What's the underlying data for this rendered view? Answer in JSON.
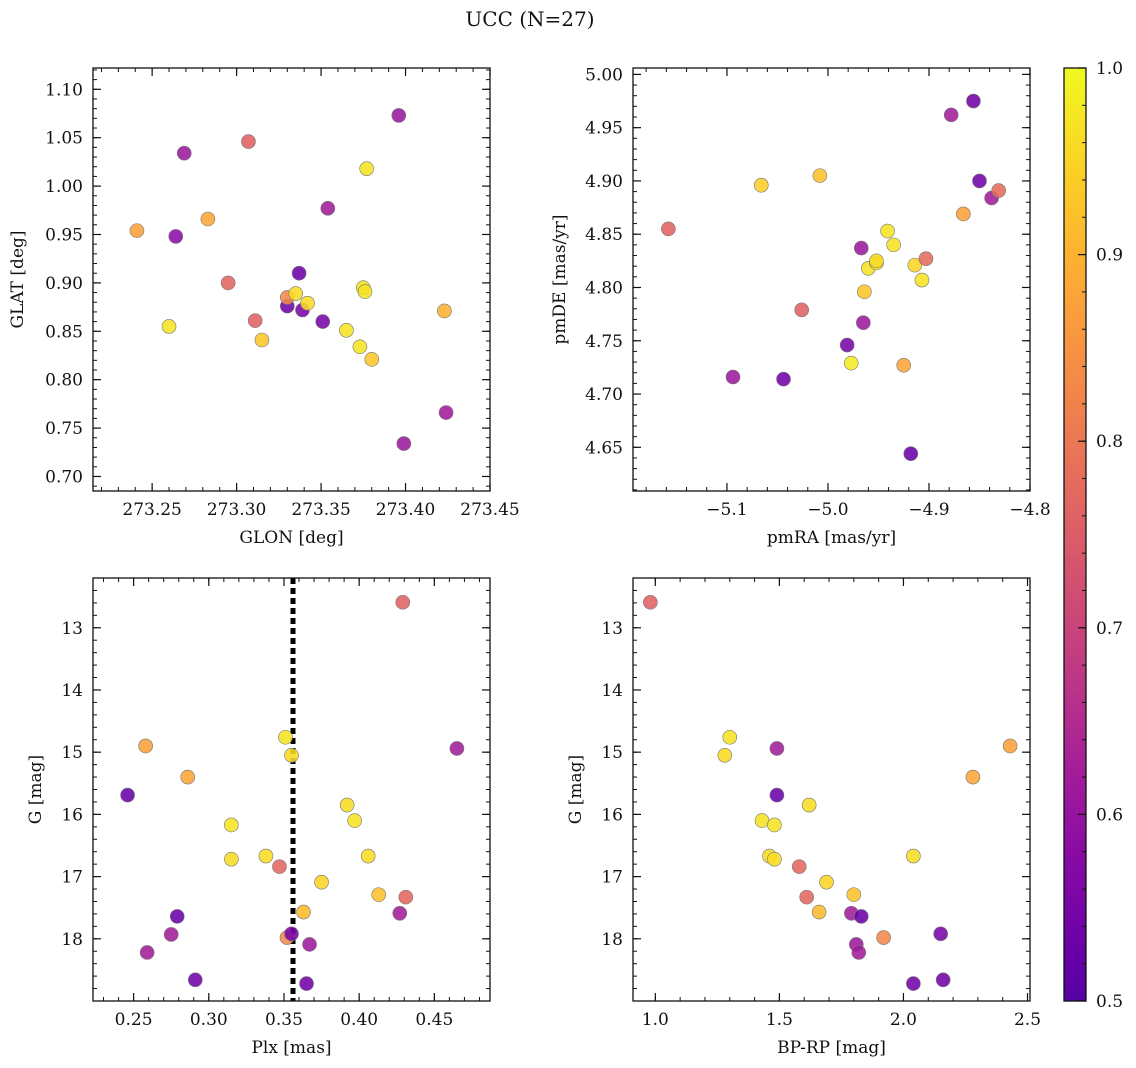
{
  "figure": {
    "title": "UCC (N=27)",
    "colorbar": {
      "colormap": "plasma",
      "range": [
        0.5,
        1.0
      ],
      "ticks": [
        0.5,
        0.6,
        0.7,
        0.8,
        0.9,
        1.0
      ],
      "tick_labels": [
        "0.5",
        "0.6",
        "0.7",
        "0.8",
        "0.9",
        "1.0"
      ]
    }
  },
  "chart_data": [
    {
      "type": "scatter",
      "xlabel": "GLON [deg]",
      "ylabel": "GLAT [deg]",
      "xlim": [
        273.215,
        273.45
      ],
      "ylim": [
        0.685,
        1.122
      ],
      "invert_y": false,
      "xticks": [
        273.25,
        273.3,
        273.35,
        273.4,
        273.45
      ],
      "xtick_labels": [
        "273.25",
        "273.30",
        "273.35",
        "273.40",
        "273.45"
      ],
      "yticks": [
        0.7,
        0.75,
        0.8,
        0.85,
        0.9,
        0.95,
        1.0,
        1.05,
        1.1
      ],
      "ytick_labels": [
        "0.70",
        "0.75",
        "0.80",
        "0.85",
        "0.90",
        "0.95",
        "1.00",
        "1.05",
        "1.10"
      ],
      "minor_x_step": 0.01,
      "minor_y_step": 0.01,
      "points": [
        {
          "x": 273.241,
          "y": 0.954,
          "c": 0.87
        },
        {
          "x": 273.264,
          "y": 0.948,
          "c": 0.58
        },
        {
          "x": 273.269,
          "y": 1.034,
          "c": 0.61
        },
        {
          "x": 273.26,
          "y": 0.855,
          "c": 0.97
        },
        {
          "x": 273.283,
          "y": 0.966,
          "c": 0.88
        },
        {
          "x": 273.295,
          "y": 0.9,
          "c": 0.77
        },
        {
          "x": 273.307,
          "y": 1.046,
          "c": 0.76
        },
        {
          "x": 273.311,
          "y": 0.861,
          "c": 0.76
        },
        {
          "x": 273.315,
          "y": 0.841,
          "c": 0.93
        },
        {
          "x": 273.33,
          "y": 0.876,
          "c": 0.54
        },
        {
          "x": 273.33,
          "y": 0.885,
          "c": 0.83
        },
        {
          "x": 273.335,
          "y": 0.889,
          "c": 0.96
        },
        {
          "x": 273.337,
          "y": 0.91,
          "c": 0.53
        },
        {
          "x": 273.339,
          "y": 0.872,
          "c": 0.55
        },
        {
          "x": 273.342,
          "y": 0.879,
          "c": 0.96
        },
        {
          "x": 273.351,
          "y": 0.86,
          "c": 0.55
        },
        {
          "x": 273.354,
          "y": 0.977,
          "c": 0.62
        },
        {
          "x": 273.365,
          "y": 0.851,
          "c": 0.97
        },
        {
          "x": 273.373,
          "y": 0.834,
          "c": 0.97
        },
        {
          "x": 273.375,
          "y": 0.895,
          "c": 0.97
        },
        {
          "x": 273.376,
          "y": 0.891,
          "c": 0.97
        },
        {
          "x": 273.377,
          "y": 1.018,
          "c": 0.97
        },
        {
          "x": 273.38,
          "y": 0.821,
          "c": 0.93
        },
        {
          "x": 273.396,
          "y": 1.073,
          "c": 0.61
        },
        {
          "x": 273.399,
          "y": 0.734,
          "c": 0.61
        },
        {
          "x": 273.423,
          "y": 0.871,
          "c": 0.9
        },
        {
          "x": 273.424,
          "y": 0.766,
          "c": 0.62
        }
      ]
    },
    {
      "type": "scatter",
      "xlabel": "pmRA [mas/yr]",
      "ylabel": "pmDE [mas/yr]",
      "xlim": [
        -5.193,
        -4.8
      ],
      "ylim": [
        4.609,
        5.006
      ],
      "invert_y": false,
      "xticks": [
        -5.1,
        -5.0,
        -4.9,
        -4.8
      ],
      "xtick_labels": [
        "−5.1",
        "−5.0",
        "−4.9",
        "−4.8"
      ],
      "yticks": [
        4.65,
        4.7,
        4.75,
        4.8,
        4.85,
        4.9,
        4.95,
        5.0
      ],
      "ytick_labels": [
        "4.65",
        "4.70",
        "4.75",
        "4.80",
        "4.85",
        "4.90",
        "4.95",
        "5.00"
      ],
      "minor_x_step": 0.02,
      "minor_y_step": 0.01,
      "points": [
        {
          "x": -5.158,
          "y": 4.855,
          "c": 0.76
        },
        {
          "x": -5.094,
          "y": 4.716,
          "c": 0.61
        },
        {
          "x": -5.066,
          "y": 4.896,
          "c": 0.94
        },
        {
          "x": -5.044,
          "y": 4.714,
          "c": 0.54
        },
        {
          "x": -5.026,
          "y": 4.779,
          "c": 0.76
        },
        {
          "x": -5.008,
          "y": 4.905,
          "c": 0.92
        },
        {
          "x": -4.981,
          "y": 4.746,
          "c": 0.55
        },
        {
          "x": -4.977,
          "y": 4.729,
          "c": 0.98
        },
        {
          "x": -4.967,
          "y": 4.837,
          "c": 0.61
        },
        {
          "x": -4.965,
          "y": 4.767,
          "c": 0.61
        },
        {
          "x": -4.964,
          "y": 4.796,
          "c": 0.93
        },
        {
          "x": -4.96,
          "y": 4.818,
          "c": 0.97
        },
        {
          "x": -4.952,
          "y": 4.823,
          "c": 0.97
        },
        {
          "x": -4.952,
          "y": 4.825,
          "c": 0.96
        },
        {
          "x": -4.941,
          "y": 4.853,
          "c": 0.97
        },
        {
          "x": -4.935,
          "y": 4.84,
          "c": 0.97
        },
        {
          "x": -4.925,
          "y": 4.727,
          "c": 0.88
        },
        {
          "x": -4.918,
          "y": 4.644,
          "c": 0.53
        },
        {
          "x": -4.914,
          "y": 4.821,
          "c": 0.95
        },
        {
          "x": -4.907,
          "y": 4.807,
          "c": 0.97
        },
        {
          "x": -4.903,
          "y": 4.827,
          "c": 0.78
        },
        {
          "x": -4.878,
          "y": 4.962,
          "c": 0.62
        },
        {
          "x": -4.866,
          "y": 4.869,
          "c": 0.87
        },
        {
          "x": -4.856,
          "y": 4.975,
          "c": 0.54
        },
        {
          "x": -4.85,
          "y": 4.9,
          "c": 0.54
        },
        {
          "x": -4.838,
          "y": 4.884,
          "c": 0.62
        },
        {
          "x": -4.831,
          "y": 4.891,
          "c": 0.78
        }
      ]
    },
    {
      "type": "scatter",
      "xlabel": "Plx [mas]",
      "ylabel": "G [mag]",
      "xlim": [
        0.223,
        0.487
      ],
      "ylim": [
        12.2,
        19.0
      ],
      "invert_y": true,
      "xticks": [
        0.25,
        0.3,
        0.35,
        0.4,
        0.45
      ],
      "xtick_labels": [
        "0.25",
        "0.30",
        "0.35",
        "0.40",
        "0.45"
      ],
      "yticks": [
        13,
        14,
        15,
        16,
        17,
        18
      ],
      "ytick_labels": [
        "13",
        "14",
        "15",
        "16",
        "17",
        "18"
      ],
      "minor_x_step": 0.01,
      "minor_y_step": 0.2,
      "vline": 0.356,
      "points": [
        {
          "x": 0.246,
          "y": 15.69,
          "c": 0.53
        },
        {
          "x": 0.258,
          "y": 14.9,
          "c": 0.87
        },
        {
          "x": 0.259,
          "y": 18.22,
          "c": 0.62
        },
        {
          "x": 0.275,
          "y": 17.93,
          "c": 0.62
        },
        {
          "x": 0.279,
          "y": 17.64,
          "c": 0.53
        },
        {
          "x": 0.286,
          "y": 15.4,
          "c": 0.88
        },
        {
          "x": 0.291,
          "y": 18.66,
          "c": 0.54
        },
        {
          "x": 0.315,
          "y": 16.17,
          "c": 0.97
        },
        {
          "x": 0.315,
          "y": 16.72,
          "c": 0.96
        },
        {
          "x": 0.338,
          "y": 16.67,
          "c": 0.96
        },
        {
          "x": 0.347,
          "y": 16.84,
          "c": 0.77
        },
        {
          "x": 0.351,
          "y": 14.76,
          "c": 0.97
        },
        {
          "x": 0.352,
          "y": 17.98,
          "c": 0.83
        },
        {
          "x": 0.355,
          "y": 15.05,
          "c": 0.96
        },
        {
          "x": 0.355,
          "y": 17.92,
          "c": 0.55
        },
        {
          "x": 0.363,
          "y": 17.57,
          "c": 0.91
        },
        {
          "x": 0.365,
          "y": 18.72,
          "c": 0.54
        },
        {
          "x": 0.367,
          "y": 18.09,
          "c": 0.61
        },
        {
          "x": 0.375,
          "y": 17.09,
          "c": 0.95
        },
        {
          "x": 0.392,
          "y": 15.85,
          "c": 0.96
        },
        {
          "x": 0.397,
          "y": 16.1,
          "c": 0.97
        },
        {
          "x": 0.406,
          "y": 16.67,
          "c": 0.96
        },
        {
          "x": 0.413,
          "y": 17.29,
          "c": 0.92
        },
        {
          "x": 0.427,
          "y": 17.59,
          "c": 0.62
        },
        {
          "x": 0.429,
          "y": 12.59,
          "c": 0.76
        },
        {
          "x": 0.431,
          "y": 17.33,
          "c": 0.77
        },
        {
          "x": 0.465,
          "y": 14.94,
          "c": 0.62
        }
      ]
    },
    {
      "type": "scatter",
      "xlabel": "BP-RP [mag]",
      "ylabel": "G [mag]",
      "xlim": [
        0.91,
        2.51
      ],
      "ylim": [
        12.2,
        19.0
      ],
      "invert_y": true,
      "xticks": [
        1.0,
        1.5,
        2.0,
        2.5
      ],
      "xtick_labels": [
        "1.0",
        "1.5",
        "2.0",
        "2.5"
      ],
      "yticks": [
        13,
        14,
        15,
        16,
        17,
        18
      ],
      "ytick_labels": [
        "13",
        "14",
        "15",
        "16",
        "17",
        "18"
      ],
      "minor_x_step": 0.1,
      "minor_y_step": 0.2,
      "points": [
        {
          "x": 0.98,
          "y": 12.59,
          "c": 0.76
        },
        {
          "x": 1.28,
          "y": 15.05,
          "c": 0.96
        },
        {
          "x": 1.3,
          "y": 14.76,
          "c": 0.97
        },
        {
          "x": 1.43,
          "y": 16.1,
          "c": 0.97
        },
        {
          "x": 1.46,
          "y": 16.67,
          "c": 0.96
        },
        {
          "x": 1.48,
          "y": 16.72,
          "c": 0.96
        },
        {
          "x": 1.48,
          "y": 16.17,
          "c": 0.97
        },
        {
          "x": 1.49,
          "y": 14.94,
          "c": 0.62
        },
        {
          "x": 1.49,
          "y": 15.69,
          "c": 0.53
        },
        {
          "x": 1.58,
          "y": 16.84,
          "c": 0.77
        },
        {
          "x": 1.61,
          "y": 17.33,
          "c": 0.77
        },
        {
          "x": 1.62,
          "y": 15.85,
          "c": 0.96
        },
        {
          "x": 1.66,
          "y": 17.57,
          "c": 0.91
        },
        {
          "x": 1.69,
          "y": 17.09,
          "c": 0.95
        },
        {
          "x": 1.79,
          "y": 17.59,
          "c": 0.62
        },
        {
          "x": 1.8,
          "y": 17.29,
          "c": 0.92
        },
        {
          "x": 1.81,
          "y": 18.09,
          "c": 0.61
        },
        {
          "x": 1.82,
          "y": 18.22,
          "c": 0.62
        },
        {
          "x": 1.83,
          "y": 17.64,
          "c": 0.53
        },
        {
          "x": 1.92,
          "y": 17.98,
          "c": 0.83
        },
        {
          "x": 2.04,
          "y": 16.67,
          "c": 0.96
        },
        {
          "x": 2.04,
          "y": 18.72,
          "c": 0.54
        },
        {
          "x": 2.15,
          "y": 17.92,
          "c": 0.55
        },
        {
          "x": 2.16,
          "y": 18.66,
          "c": 0.54
        },
        {
          "x": 2.28,
          "y": 15.4,
          "c": 0.88
        },
        {
          "x": 2.43,
          "y": 14.9,
          "c": 0.87
        }
      ]
    }
  ]
}
